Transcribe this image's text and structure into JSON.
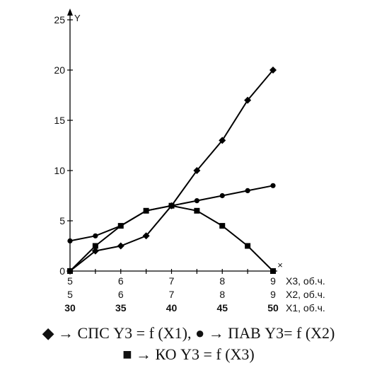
{
  "chart_data": {
    "type": "line",
    "ylabel": "Y",
    "ylim": [
      0,
      25
    ],
    "yticks": [
      "0",
      "5",
      "10",
      "15",
      "20",
      "25"
    ],
    "x_axes": [
      {
        "label": "X3, об.ч.",
        "ticks": [
          "5",
          "6",
          "7",
          "8",
          "9"
        ],
        "bold": false
      },
      {
        "label": "X2, об.ч.",
        "ticks": [
          "5",
          "6",
          "7",
          "8",
          "9"
        ],
        "bold": false
      },
      {
        "label": "X1, об.ч.",
        "ticks": [
          "30",
          "35",
          "40",
          "45",
          "50"
        ],
        "bold": true
      }
    ],
    "x_end_marker": "×",
    "x": [
      5,
      5.5,
      6,
      6.5,
      7,
      7.5,
      8,
      8.5,
      9
    ],
    "series": [
      {
        "marker": "diamond",
        "values": [
          0,
          2,
          2.5,
          3.5,
          6.5,
          10,
          13,
          17,
          20
        ]
      },
      {
        "marker": "circle",
        "values": [
          3,
          3.5,
          4.5,
          6,
          6.5,
          7,
          7.5,
          8,
          8.5
        ]
      },
      {
        "marker": "square",
        "values": [
          0,
          2.5,
          4.5,
          6,
          6.5,
          6,
          4.5,
          2.5,
          0
        ]
      }
    ],
    "legend": {
      "line1": "◆ → СПС Y3 = f (X1), ● → ПАВ Y3= f (X2)",
      "line2": "■ → КО Y3 = f (X3)"
    }
  }
}
